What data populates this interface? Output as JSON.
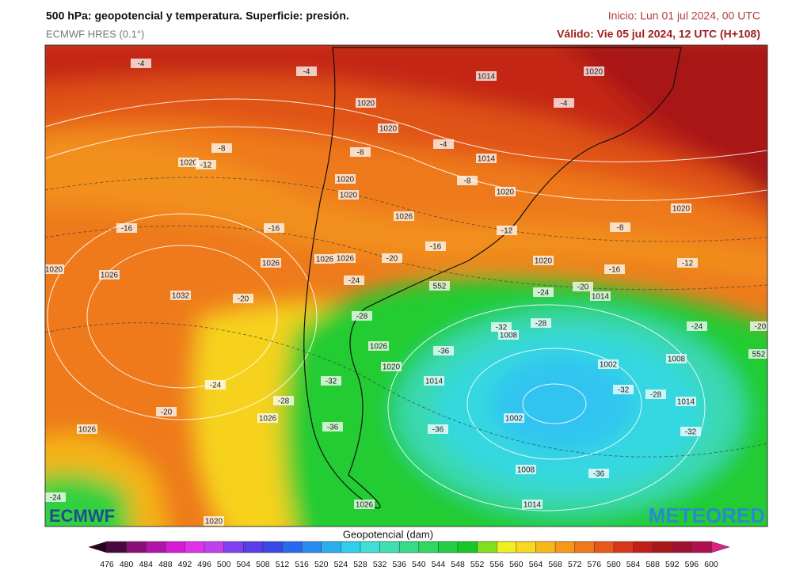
{
  "header": {
    "title": "500 hPa: geopotencial y temperatura. Superficie: presión.",
    "model": "ECMWF HRES (0.1°)",
    "init": "Inicio: Lun 01 jul 2024, 00 UTC",
    "valid": "Válido: Vie 05 jul 2024, 12 UTC (H+108)"
  },
  "map": {
    "labels": [
      -4,
      -4,
      1014,
      1020,
      1020,
      -4,
      1020,
      -8,
      -4,
      -8,
      1020,
      -12,
      1014,
      1020,
      -8,
      1020,
      1020,
      1020,
      1026,
      -16,
      -16,
      -8,
      -12,
      -16,
      1020,
      1026,
      1026,
      1026,
      -20,
      1020,
      -12,
      -16,
      1026,
      -24,
      552,
      -20,
      -24,
      1014,
      1032,
      -20,
      -28,
      -24,
      -20,
      -32,
      -28,
      1008,
      1026,
      -36,
      552,
      1020,
      1002,
      1008,
      1014,
      -32,
      -24,
      -32,
      -28,
      1014,
      -28,
      -20,
      1026,
      1002,
      -36,
      -36,
      -32,
      1026,
      1008,
      -36,
      -24,
      1014,
      1026,
      1020
    ]
  },
  "logos": {
    "left": "ECMWF",
    "right": "METEORED"
  },
  "colorbar": {
    "title": "Geopotencial (dam)",
    "ticks": [
      476,
      480,
      484,
      488,
      492,
      496,
      500,
      504,
      508,
      512,
      516,
      520,
      524,
      528,
      532,
      536,
      540,
      544,
      548,
      552,
      556,
      560,
      564,
      568,
      572,
      576,
      580,
      584,
      588,
      592,
      596,
      600
    ],
    "colors": [
      "#4a0840",
      "#8a0f7a",
      "#b014a8",
      "#d41ad4",
      "#e033e8",
      "#c040f0",
      "#8040f0",
      "#5a3ce8",
      "#3a48e8",
      "#2a68f0",
      "#2a8cf0",
      "#2ab0f0",
      "#2ed0f0",
      "#40e0d8",
      "#40e0b0",
      "#38dc88",
      "#30d860",
      "#20d040",
      "#18c828",
      "#80e020",
      "#f0f020",
      "#f8d820",
      "#f8b818",
      "#f89818",
      "#f07818",
      "#e85818",
      "#d83818",
      "#c02018",
      "#a81818",
      "#a01030",
      "#b01050"
    ],
    "under_color": "#2a0020",
    "over_color": "#e02080"
  }
}
